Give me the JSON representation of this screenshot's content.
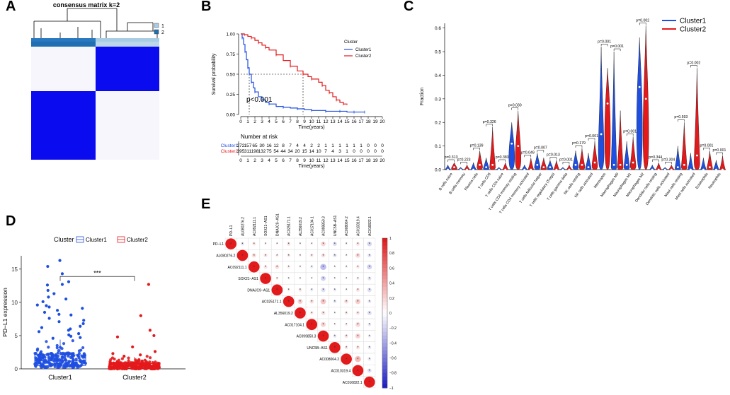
{
  "panels": {
    "a": {
      "letter": "A",
      "title": "consensus matrix k=2",
      "legend": [
        "1",
        "2"
      ],
      "colors": {
        "dark": "#0b0bf0",
        "light": "#f3f3fb",
        "annot1": "#a8cce4",
        "annot2": "#1f6fb2"
      }
    },
    "b": {
      "letter": "B",
      "risk_table_title": "Number at risk",
      "pvalue_label": "p<0.001",
      "legend_title": "Cluster",
      "legend_labels": [
        "Cluster1",
        "Cluster2"
      ]
    },
    "c": {
      "letter": "C",
      "legend_labels": [
        "Cluster1",
        "Cluster2"
      ]
    },
    "d": {
      "letter": "D",
      "legend_title": "Cluster",
      "legend_labels": [
        "Cluster1",
        "Cluster2"
      ],
      "significance": "***"
    },
    "e": {
      "letter": "E"
    }
  },
  "colors": {
    "cluster1": "#1f4fe0",
    "cluster2": "#e3191c",
    "corr_pos": "#e3191c",
    "corr_neg": "#2020c8"
  },
  "chart_data": [
    {
      "id": "B",
      "type": "line",
      "title": "",
      "xlabel": "Time(years)",
      "ylabel": "Survival probability",
      "xlim": [
        0,
        20
      ],
      "ylim": [
        0,
        1
      ],
      "x_ticks": [
        0,
        1,
        2,
        3,
        4,
        5,
        6,
        7,
        8,
        9,
        10,
        11,
        12,
        13,
        14,
        15,
        16,
        17,
        18,
        19,
        20
      ],
      "y_ticks": [
        "0.00",
        "0.25",
        "0.50",
        "0.75",
        "1.00"
      ],
      "median_line": {
        "y": 0.5,
        "x_cluster1": 1.2,
        "x_cluster2": 8.8
      },
      "series": [
        {
          "name": "Cluster1",
          "x": [
            0,
            0.2,
            0.4,
            0.6,
            0.8,
            1.0,
            1.2,
            1.5,
            1.8,
            2.0,
            2.5,
            3.0,
            3.5,
            4.0,
            5.0,
            6.0,
            7.0,
            8.0,
            9.0,
            10.0,
            11.0,
            12.0,
            13.0,
            14.0,
            15.0,
            16.0,
            17.0,
            17.5
          ],
          "y": [
            1.0,
            0.95,
            0.87,
            0.78,
            0.68,
            0.58,
            0.5,
            0.4,
            0.33,
            0.28,
            0.22,
            0.18,
            0.15,
            0.13,
            0.1,
            0.09,
            0.08,
            0.07,
            0.06,
            0.05,
            0.05,
            0.04,
            0.04,
            0.04,
            0.03,
            0.03,
            0.03,
            0.03
          ]
        },
        {
          "name": "Cluster2",
          "x": [
            0,
            0.5,
            1.0,
            1.5,
            2.0,
            2.5,
            3.0,
            3.5,
            4.0,
            5.0,
            6.0,
            7.0,
            8.0,
            8.8,
            9.5,
            10.0,
            11.0,
            11.5,
            12.0,
            12.5,
            13.0,
            13.5,
            14.0,
            14.5,
            15.0
          ],
          "y": [
            1.0,
            0.99,
            0.97,
            0.95,
            0.92,
            0.89,
            0.86,
            0.83,
            0.8,
            0.74,
            0.67,
            0.6,
            0.54,
            0.5,
            0.47,
            0.44,
            0.4,
            0.36,
            0.3,
            0.27,
            0.22,
            0.18,
            0.15,
            0.13,
            0.12
          ]
        }
      ],
      "risk_table": {
        "times": [
          0,
          1,
          2,
          3,
          4,
          5,
          6,
          7,
          8,
          9,
          10,
          11,
          12,
          13,
          14,
          15,
          16,
          17,
          18,
          19,
          20
        ],
        "rows": [
          {
            "name": "Cluster1",
            "values": [
              "272",
              "157",
              "65",
              "30",
              "16",
              "12",
              "8",
              "7",
              "4",
              "4",
              "2",
              "2",
              "1",
              "1",
              "1",
              "1",
              "1",
              "1",
              "0",
              "0",
              "0"
            ]
          },
          {
            "name": "Cluster2",
            "values": [
              "395",
              "311",
              "198",
              "132",
              "75",
              "54",
              "44",
              "34",
              "20",
              "15",
              "14",
              "10",
              "7",
              "4",
              "3",
              "1",
              "0",
              "0",
              "0",
              "0",
              "0"
            ]
          }
        ]
      }
    },
    {
      "id": "C",
      "type": "violin",
      "ylabel": "Fraction",
      "ylim": [
        0,
        0.62
      ],
      "y_ticks": [
        "0.0",
        "0.1",
        "0.2",
        "0.3",
        "0.4",
        "0.5",
        "0.6"
      ],
      "categories": [
        "B cells naive",
        "B cells memory",
        "Plasma cells",
        "T cells CD8",
        "T cells CD4 naive",
        "T cells CD4 memory resting",
        "T cells CD4 memory activated",
        "T cells follicular helper",
        "T cells regulatory (Tregs)",
        "T cells gamma delta",
        "NK cells resting",
        "NK cells activated",
        "Monocytes",
        "Macrophages M0",
        "Macrophages M1",
        "Macrophages M2",
        "Dendritic cells resting",
        "Dendritic cells activated",
        "Mast cells resting",
        "Mast cells activated",
        "Eosinophils",
        "Neutrophils"
      ],
      "pvalues": [
        "p=0.313",
        "p=0.223",
        "p=0.139",
        "p=0.326",
        "p=0.383",
        "p=0.030",
        "p=0.049",
        "p=0.007",
        "p=0.013",
        "p=0.001",
        "p=0.179",
        "p=0.001",
        "p=0.001",
        "p=0.001",
        "p=0.001",
        "p=0.002",
        "p=0.344",
        "p=0.304",
        "p=0.593",
        "p=0.002",
        "p=0.001",
        "p=0.001"
      ],
      "series": [
        {
          "name": "Cluster1",
          "max": [
            0.02,
            0.01,
            0.03,
            0.05,
            0.01,
            0.2,
            0.02,
            0.07,
            0.04,
            0.01,
            0.08,
            0.07,
            0.52,
            0.5,
            0.12,
            0.56,
            0.02,
            0.01,
            0.1,
            0.07,
            0.05,
            0.04
          ],
          "median": [
            0.0,
            0.0,
            0.0,
            0.01,
            0.0,
            0.11,
            0.0,
            0.02,
            0.01,
            0.0,
            0.02,
            0.01,
            0.15,
            0.02,
            0.02,
            0.35,
            0.0,
            0.0,
            0.01,
            0.0,
            0.0,
            0.0
          ]
        },
        {
          "name": "Cluster2",
          "max": [
            0.03,
            0.02,
            0.08,
            0.18,
            0.03,
            0.25,
            0.05,
            0.05,
            0.04,
            0.02,
            0.09,
            0.12,
            0.43,
            0.25,
            0.14,
            0.61,
            0.03,
            0.02,
            0.2,
            0.43,
            0.08,
            0.06
          ],
          "median": [
            0.01,
            0.0,
            0.02,
            0.02,
            0.0,
            0.1,
            0.0,
            0.01,
            0.0,
            0.0,
            0.02,
            0.03,
            0.28,
            0.02,
            0.03,
            0.3,
            0.0,
            0.0,
            0.02,
            0.06,
            0.01,
            0.0
          ]
        }
      ]
    },
    {
      "id": "D",
      "type": "scatter",
      "ylabel": "PD−L1 expression",
      "ylim": [
        0,
        17
      ],
      "y_ticks": [
        "0",
        "5",
        "10",
        "15"
      ],
      "categories": [
        "Cluster1",
        "Cluster2"
      ],
      "box": [
        {
          "name": "Cluster1",
          "q1": 0.5,
          "median": 1.2,
          "q3": 2.1,
          "whisker_low": 0,
          "whisker_high": 4.4
        },
        {
          "name": "Cluster2",
          "q1": 0.1,
          "median": 0.4,
          "q3": 0.8,
          "whisker_low": 0,
          "whisker_high": 1.8
        }
      ],
      "outliers": [
        {
          "name": "Cluster1",
          "values": [
            16.3,
            15.4,
            14.3,
            13.1,
            12.7,
            12.6,
            11.8,
            11.3,
            10.8,
            10.5,
            10.1,
            9.6,
            9.5,
            9.3,
            9.1,
            8.8,
            8.5,
            8.2,
            8.1,
            7.6,
            7.3,
            7.1,
            6.8,
            6.4,
            6.2,
            6.0,
            5.8,
            5.6,
            5.3,
            5.1,
            4.9,
            4.7,
            4.6
          ]
        },
        {
          "name": "Cluster2",
          "values": [
            12.7,
            8.0,
            5.8,
            5.0,
            4.8,
            3.3,
            2.6,
            2.3,
            2.1,
            1.9
          ]
        }
      ]
    },
    {
      "id": "E",
      "type": "heatmap",
      "labels": [
        "PD−L1",
        "AL080276.2",
        "AC092111.1",
        "SOX21−AS1",
        "DNAJC9−AS1",
        "AC025171.1",
        "AL356019.2",
        "AC017104.1",
        "AC099850.3",
        "UNC5B−AS1",
        "AC008064.2",
        "AC010319.4",
        "AC016822.1"
      ],
      "colorbar_ticks": [
        "1",
        "0.8",
        "0.6",
        "0.4",
        "0.2",
        "0",
        "−0.2",
        "−0.4",
        "−0.6",
        "−0.8",
        "−1"
      ],
      "values": [
        [
          1,
          -0.1,
          0.1,
          0.05,
          0.04,
          0.12,
          0.05,
          0.05,
          0.18,
          -0.15,
          -0.05,
          0.12,
          -0.18
        ],
        [
          -0.1,
          1,
          0.15,
          0.12,
          0.08,
          0.1,
          0.06,
          0.1,
          0.14,
          -0.12,
          -0.04,
          0.18,
          -0.12
        ],
        [
          0.1,
          0.15,
          1,
          0.12,
          0.15,
          0.08,
          0.05,
          -0.08,
          -0.3,
          0.05,
          0.06,
          0.1,
          -0.2
        ],
        [
          0.05,
          0.12,
          0.12,
          1,
          0.06,
          0.05,
          0.04,
          -0.03,
          -0.2,
          0.02,
          -0.03,
          0.08,
          -0.12
        ],
        [
          0.04,
          0.08,
          0.15,
          0.06,
          1,
          0.07,
          0.1,
          -0.08,
          -0.15,
          -0.08,
          -0.05,
          0.12,
          -0.15
        ],
        [
          0.12,
          0.1,
          0.08,
          0.05,
          0.07,
          1,
          0.2,
          0.14,
          0.25,
          -0.1,
          0.15,
          0.22,
          -0.1
        ],
        [
          0.05,
          0.06,
          0.05,
          0.04,
          0.1,
          0.2,
          1,
          0.1,
          0.14,
          -0.04,
          0.1,
          0.12,
          -0.15
        ],
        [
          0.05,
          0.1,
          -0.08,
          -0.03,
          -0.08,
          0.14,
          0.1,
          1,
          0.2,
          0.04,
          0.06,
          0.18,
          -0.1
        ],
        [
          0.18,
          0.14,
          -0.3,
          -0.2,
          -0.15,
          0.25,
          0.14,
          0.2,
          1,
          -0.1,
          0.12,
          0.2,
          -0.08
        ],
        [
          -0.15,
          -0.12,
          0.05,
          0.02,
          -0.08,
          -0.1,
          -0.04,
          0.04,
          -0.1,
          1,
          0.1,
          0.12,
          -0.1
        ],
        [
          -0.05,
          -0.04,
          0.06,
          -0.03,
          -0.05,
          0.15,
          0.1,
          0.06,
          0.12,
          0.1,
          1,
          0.3,
          -0.1
        ],
        [
          0.12,
          0.18,
          0.1,
          0.08,
          0.12,
          0.22,
          0.12,
          0.18,
          0.2,
          0.12,
          0.3,
          1,
          -0.14
        ],
        [
          -0.18,
          -0.12,
          -0.2,
          -0.12,
          -0.15,
          -0.1,
          -0.15,
          -0.1,
          -0.08,
          -0.1,
          -0.1,
          -0.14,
          1
        ]
      ]
    }
  ]
}
